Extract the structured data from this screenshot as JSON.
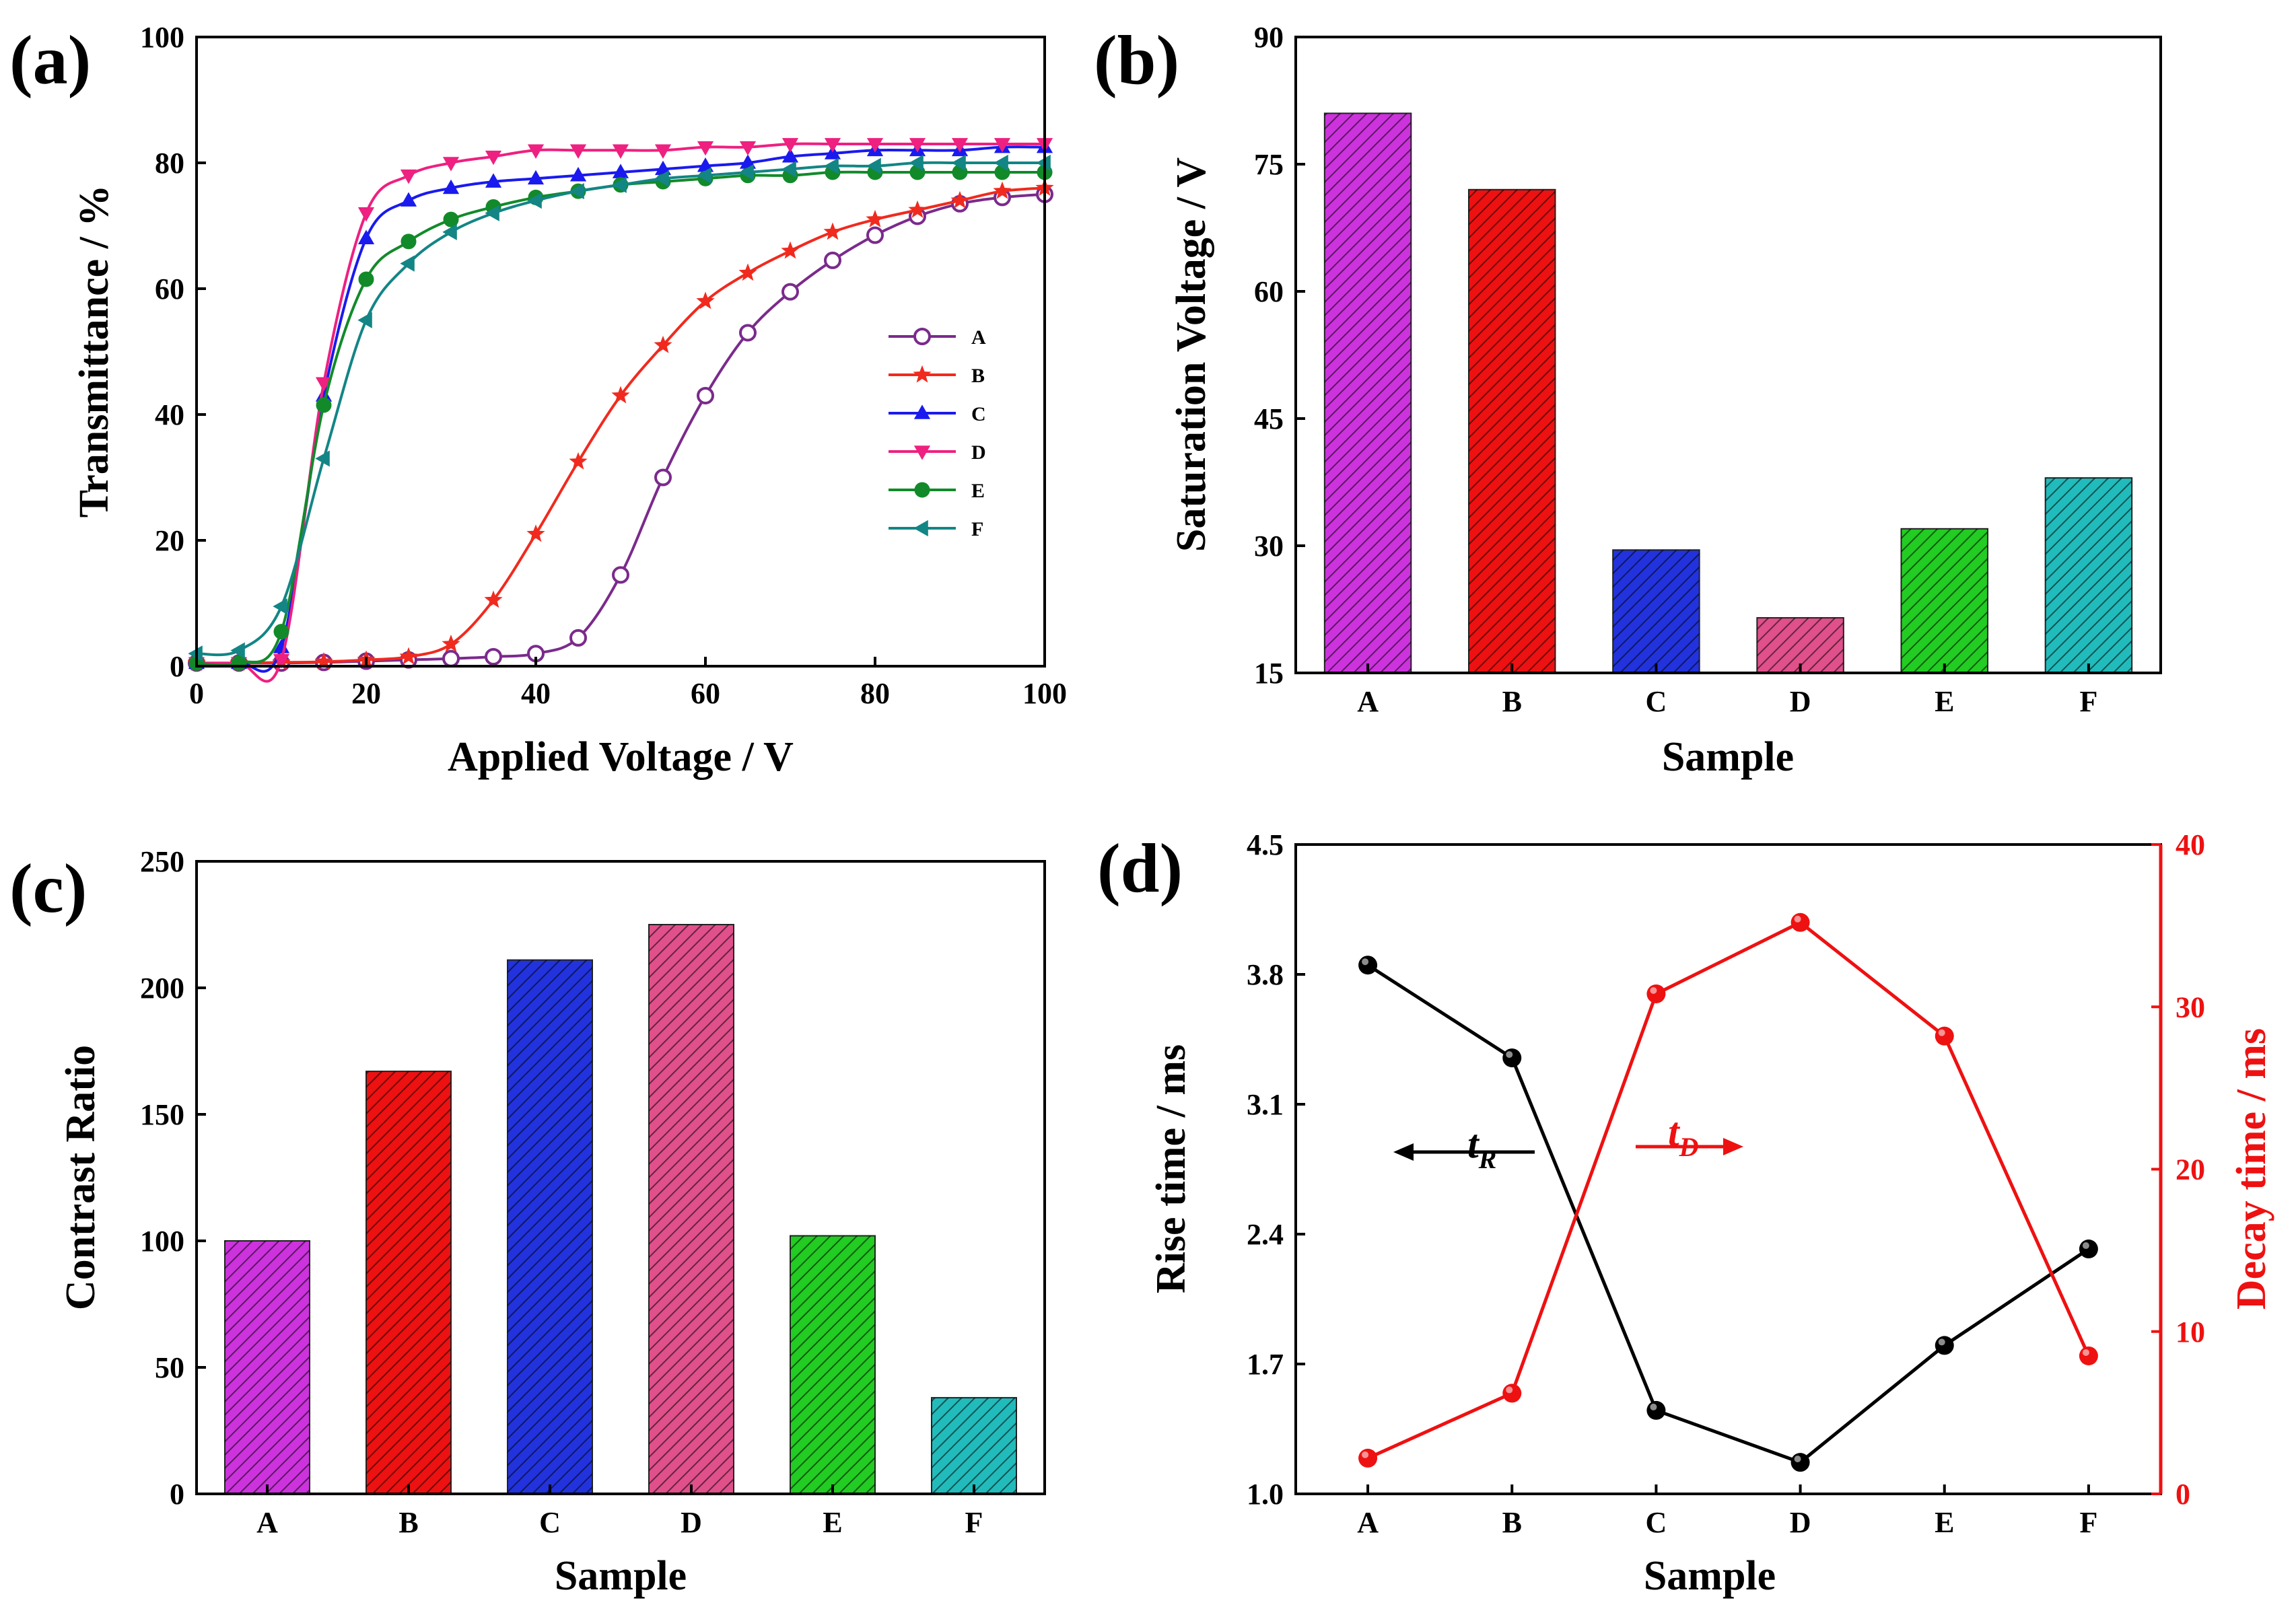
{
  "panels": {
    "a": {
      "label": "(a)"
    },
    "b": {
      "label": "(b)"
    },
    "c": {
      "label": "(c)"
    },
    "d": {
      "label": "(d)"
    }
  },
  "chart_data": [
    {
      "id": "a",
      "type": "line",
      "title": "",
      "xlabel": "Applied Voltage / V",
      "ylabel": "Transmittance / %",
      "xlim": [
        0,
        100
      ],
      "ylim": [
        0,
        100
      ],
      "xticks": [
        "0",
        "20",
        "40",
        "60",
        "80",
        "100"
      ],
      "yticks": [
        "0",
        "20",
        "40",
        "60",
        "80",
        "100"
      ],
      "legend_position": "center-right",
      "x": [
        0,
        5,
        10,
        15,
        20,
        25,
        30,
        35,
        40,
        45,
        50,
        55,
        60,
        65,
        70,
        75,
        80,
        85,
        90,
        95,
        100
      ],
      "series": [
        {
          "name": "A",
          "color": "#7b2a8c",
          "marker": "circle-open",
          "values": [
            0.5,
            0.5,
            0.5,
            0.6,
            0.8,
            1.0,
            1.2,
            1.5,
            2.0,
            4.5,
            14.5,
            30,
            43,
            53,
            59.5,
            64.5,
            68.5,
            71.5,
            73.5,
            74.5,
            75
          ]
        },
        {
          "name": "B",
          "color": "#f02a1e",
          "marker": "star",
          "values": [
            0.5,
            0.5,
            0.6,
            0.7,
            1.0,
            1.5,
            3.5,
            10.5,
            21,
            32.5,
            43,
            51,
            58,
            62.5,
            66,
            69,
            71,
            72.5,
            74,
            75.5,
            76
          ]
        },
        {
          "name": "C",
          "color": "#1a1aee",
          "marker": "triangle-up",
          "values": [
            0.5,
            0.5,
            3.0,
            43,
            68,
            74,
            76,
            77,
            77.5,
            78,
            78.5,
            79,
            79.5,
            80,
            81,
            81.5,
            82,
            82,
            82,
            82.5,
            82.5
          ]
        },
        {
          "name": "D",
          "color": "#ee2080",
          "marker": "triangle-down",
          "values": [
            0.5,
            0.5,
            1.0,
            45,
            72,
            78,
            80,
            81,
            82,
            82,
            82,
            82,
            82.5,
            82.5,
            83,
            83,
            83,
            83,
            83,
            83,
            83
          ]
        },
        {
          "name": "E",
          "color": "#128a2a",
          "marker": "circle",
          "values": [
            0.5,
            0.5,
            5.5,
            41.5,
            61.5,
            67.5,
            71,
            73,
            74.5,
            75.5,
            76.5,
            77,
            77.5,
            78,
            78,
            78.5,
            78.5,
            78.5,
            78.5,
            78.5,
            78.5
          ]
        },
        {
          "name": "F",
          "color": "#138585",
          "marker": "triangle-left",
          "values": [
            2.0,
            2.5,
            9.5,
            33,
            55,
            64,
            69,
            72,
            74,
            75.5,
            76.5,
            77.5,
            78,
            78.5,
            79,
            79.5,
            79.5,
            80,
            80,
            80,
            80
          ]
        }
      ]
    },
    {
      "id": "b",
      "type": "bar",
      "title": "",
      "xlabel": "Sample",
      "ylabel": "Saturation Voltage / V",
      "ylim": [
        15,
        90
      ],
      "yticks": [
        "15",
        "30",
        "45",
        "60",
        "75",
        "90"
      ],
      "categories": [
        "A",
        "B",
        "C",
        "D",
        "E",
        "F"
      ],
      "values": [
        81,
        72,
        29.5,
        21.5,
        32,
        38
      ],
      "colors": [
        "#cc33dd",
        "#ee1111",
        "#2233dd",
        "#e0508a",
        "#22cc22",
        "#22bbbb"
      ],
      "hatched": true
    },
    {
      "id": "c",
      "type": "bar",
      "title": "",
      "xlabel": "Sample",
      "ylabel": "Contrast Ratio",
      "ylim": [
        0,
        250
      ],
      "yticks": [
        "0",
        "50",
        "100",
        "150",
        "200",
        "250"
      ],
      "categories": [
        "A",
        "B",
        "C",
        "D",
        "E",
        "F"
      ],
      "values": [
        100,
        167,
        211,
        225,
        102,
        38
      ],
      "colors": [
        "#cc33dd",
        "#ee1111",
        "#2233dd",
        "#e0508a",
        "#22cc22",
        "#22bbbb"
      ],
      "hatched": true
    },
    {
      "id": "d",
      "type": "line",
      "title": "",
      "xlabel": "Sample",
      "ylabel": "Rise time / ms",
      "ylabel_right": "Decay time / ms",
      "categories": [
        "A",
        "B",
        "C",
        "D",
        "E",
        "F"
      ],
      "ylim": [
        1.0,
        4.5
      ],
      "ylim_right": [
        0,
        40
      ],
      "yticks": [
        "1.0",
        "1.7",
        "2.4",
        "3.1",
        "3.8",
        "4.5"
      ],
      "yticks_right": [
        "0",
        "10",
        "20",
        "30",
        "40"
      ],
      "series": [
        {
          "name": "tR",
          "label_main": "t",
          "label_sub": "R",
          "axis": "left",
          "color": "#000000",
          "values": [
            3.85,
            3.35,
            1.45,
            1.17,
            1.8,
            2.32
          ]
        },
        {
          "name": "tD",
          "label_main": "t",
          "label_sub": "D",
          "axis": "right",
          "color": "#ee1111",
          "values": [
            2.2,
            6.2,
            30.8,
            35.2,
            28.2,
            8.5
          ]
        }
      ]
    }
  ]
}
